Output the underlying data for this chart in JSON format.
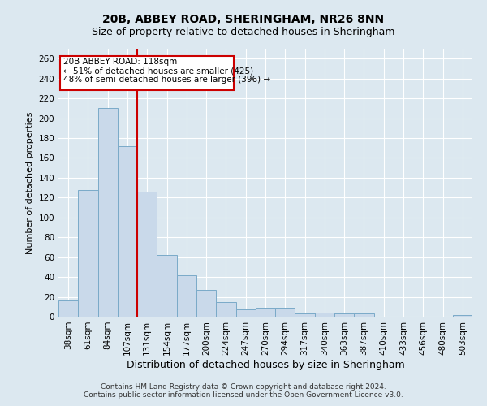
{
  "title_line1": "20B, ABBEY ROAD, SHERINGHAM, NR26 8NN",
  "title_line2": "Size of property relative to detached houses in Sheringham",
  "xlabel": "Distribution of detached houses by size in Sheringham",
  "ylabel": "Number of detached properties",
  "bar_labels": [
    "38sqm",
    "61sqm",
    "84sqm",
    "107sqm",
    "131sqm",
    "154sqm",
    "177sqm",
    "200sqm",
    "224sqm",
    "247sqm",
    "270sqm",
    "294sqm",
    "317sqm",
    "340sqm",
    "363sqm",
    "387sqm",
    "410sqm",
    "433sqm",
    "456sqm",
    "480sqm",
    "503sqm"
  ],
  "bar_values": [
    16,
    128,
    210,
    172,
    126,
    62,
    42,
    27,
    15,
    7,
    9,
    9,
    3,
    4,
    3,
    3,
    0,
    0,
    0,
    0,
    2
  ],
  "bar_color": "#c9d9ea",
  "bar_edge_color": "#7aaac8",
  "vline_x": 3.5,
  "vline_color": "#cc0000",
  "annotation_line1": "20B ABBEY ROAD: 118sqm",
  "annotation_line2": "← 51% of detached houses are smaller (425)",
  "annotation_line3": "48% of semi-detached houses are larger (396) →",
  "annotation_box_facecolor": "#ffffff",
  "annotation_box_edgecolor": "#cc0000",
  "ylim": [
    0,
    270
  ],
  "yticks": [
    0,
    20,
    40,
    60,
    80,
    100,
    120,
    140,
    160,
    180,
    200,
    220,
    240,
    260
  ],
  "footnote1": "Contains HM Land Registry data © Crown copyright and database right 2024.",
  "footnote2": "Contains public sector information licensed under the Open Government Licence v3.0.",
  "fig_facecolor": "#dce8f0",
  "plot_facecolor": "#dce8f0",
  "grid_color": "#ffffff",
  "title1_fontsize": 10,
  "title2_fontsize": 9,
  "xlabel_fontsize": 9,
  "ylabel_fontsize": 8,
  "tick_fontsize": 7.5,
  "annot_fontsize": 7.5,
  "footnote_fontsize": 6.5
}
